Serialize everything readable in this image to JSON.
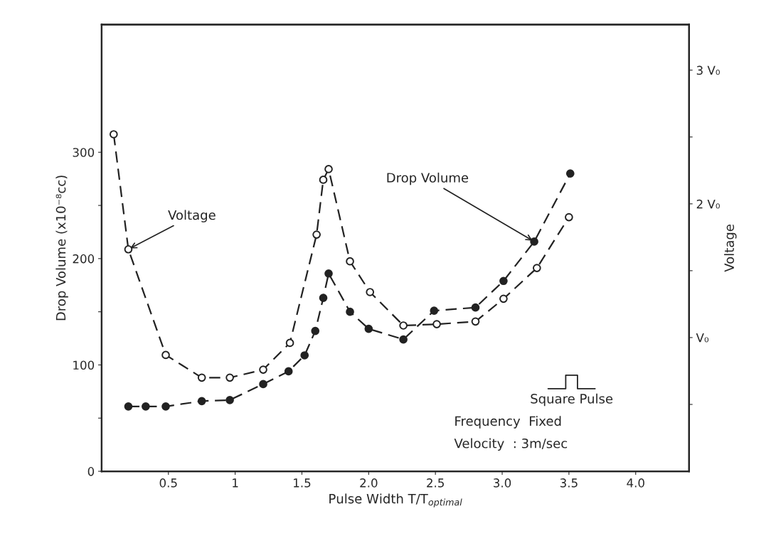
{
  "chart_data": {
    "type": "line",
    "xlabel": "Pulse Width T/T$_{optimal}$",
    "ylabel": "Drop Volume (x10⁻⁸cc)",
    "y2label": "Voltage",
    "xlim": [
      0,
      4.4
    ],
    "xticks": [
      0.5,
      1,
      1.5,
      {
        "value": 2,
        "label": "2.0"
      },
      2.5,
      {
        "value": 3,
        "label": "3.0"
      },
      3.5,
      {
        "value": 4,
        "label": "4.0"
      }
    ],
    "ylim": [
      0,
      420
    ],
    "yticks": [
      0,
      {
        "value": 50,
        "label": null
      },
      100,
      {
        "value": 150,
        "label": null
      },
      200,
      {
        "value": 250,
        "label": null
      },
      300
    ],
    "y2lim": [
      0,
      3.34
    ],
    "y2ticks": [
      {
        "value": 0.5,
        "label": null
      },
      {
        "value": 1,
        "label": "V₀"
      },
      {
        "value": 1.5,
        "label": null
      },
      {
        "value": 2,
        "label": "2 V₀"
      },
      {
        "value": 2.5,
        "label": null
      },
      {
        "value": 3,
        "label": "3 V₀"
      }
    ],
    "marker": "circle",
    "line_style": "dashed",
    "grid": false,
    "series": [
      {
        "name": "Voltage",
        "color": "#222222",
        "axis": "y2",
        "x": [
          0.09,
          0.2,
          0.48,
          0.75,
          0.96,
          1.21,
          1.41,
          1.61,
          1.66,
          1.7,
          1.86,
          2.01,
          2.26,
          2.51,
          2.8,
          3.01,
          3.26,
          3.5
        ],
        "values": [
          2.52,
          1.66,
          0.87,
          0.7,
          0.7,
          0.76,
          0.96,
          1.77,
          2.18,
          2.26,
          1.57,
          1.34,
          1.09,
          1.1,
          1.12,
          1.29,
          1.52,
          1.9
        ]
      },
      {
        "name": "Drop Volume",
        "color": "#222222",
        "x": [
          0.2,
          0.33,
          0.48,
          0.75,
          0.96,
          1.21,
          1.4,
          1.52,
          1.6,
          1.66,
          1.7,
          1.86,
          2.0,
          2.26,
          2.49,
          2.8,
          3.01,
          3.24,
          3.51
        ],
        "values": [
          61,
          61,
          61,
          66,
          67,
          82,
          94,
          109,
          132,
          163,
          186,
          150,
          134,
          124,
          151,
          154,
          179,
          216,
          280
        ]
      }
    ],
    "annotations": [
      "Square Pulse",
      "Frequency  Fixed",
      "Velocity  : 3m/sec"
    ]
  }
}
